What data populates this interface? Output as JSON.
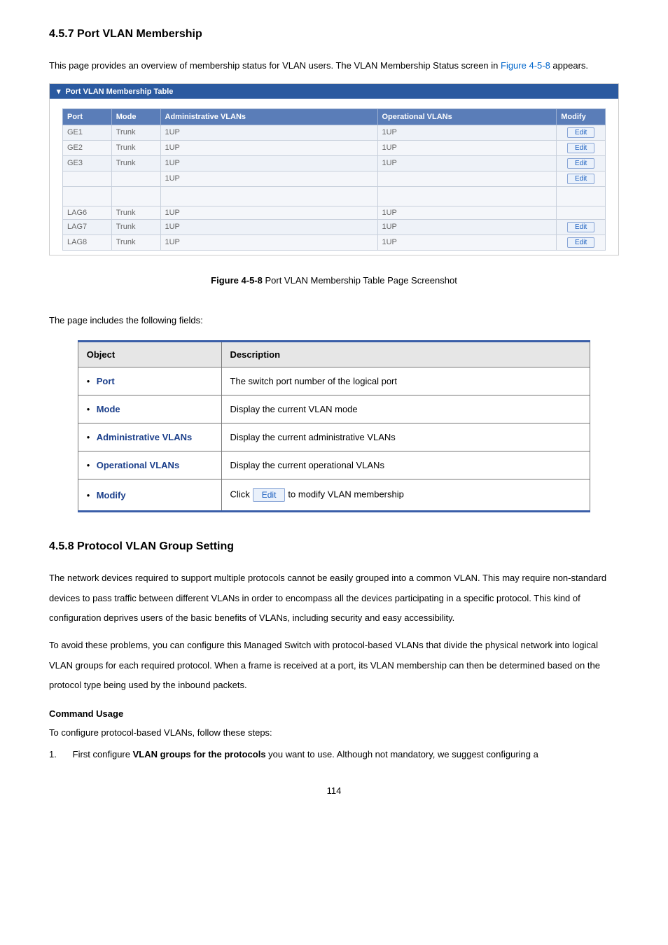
{
  "colors": {
    "panel_header_bg": "#2b5aa0",
    "table_header_bg": "#5a7db8",
    "edit_btn_text": "#1b5fbf",
    "accent_rule": "#3a5ea8",
    "object_label": "#1b3f8b",
    "figlink": "#0066cc"
  },
  "section1": {
    "heading": "4.5.7 Port VLAN Membership",
    "intro_before_link": "This page provides an overview of membership status for VLAN users. The VLAN Membership Status screen in ",
    "intro_link_text": "Figure 4-5-8",
    "intro_after_link": " appears."
  },
  "screenshot": {
    "panel_title": "Port VLAN Membership Table",
    "columns": {
      "port": "Port",
      "mode": "Mode",
      "admin": "Administrative VLANs",
      "oper": "Operational VLANs",
      "modify": "Modify"
    },
    "edit_label": "Edit",
    "rows_top": [
      {
        "port": "GE1",
        "mode": "Trunk",
        "admin": "1UP",
        "oper": "1UP"
      },
      {
        "port": "GE2",
        "mode": "Trunk",
        "admin": "1UP",
        "oper": "1UP"
      },
      {
        "port": "GE3",
        "mode": "Trunk",
        "admin": "1UP",
        "oper": "1UP"
      },
      {
        "port": "",
        "mode": "",
        "admin": "1UP",
        "oper": ""
      }
    ],
    "rows_bottom": [
      {
        "port": "LAG6",
        "mode": "Trunk",
        "admin": "1UP",
        "oper": "1UP",
        "show_edit": false
      },
      {
        "port": "LAG7",
        "mode": "Trunk",
        "admin": "1UP",
        "oper": "1UP",
        "show_edit": true
      },
      {
        "port": "LAG8",
        "mode": "Trunk",
        "admin": "1UP",
        "oper": "1UP",
        "show_edit": true
      }
    ]
  },
  "figure_caption": {
    "bold": "Figure 4-5-8",
    "rest": " Port VLAN Membership Table Page Screenshot"
  },
  "fields_intro": "The page includes the following fields:",
  "obj_table": {
    "head_object": "Object",
    "head_desc": "Description",
    "rows": [
      {
        "label": "Port",
        "desc": "The switch port number of the logical port"
      },
      {
        "label": "Mode",
        "desc": "Display the current VLAN mode"
      },
      {
        "label": "Administrative VLANs",
        "desc": "Display the current administrative VLANs"
      },
      {
        "label": "Operational VLANs",
        "desc": "Display the current operational VLANs"
      }
    ],
    "modify_label": "Modify",
    "modify_desc_before": "Click",
    "modify_btn": "Edit",
    "modify_desc_after": "to modify VLAN membership"
  },
  "section2": {
    "heading": "4.5.8 Protocol VLAN Group Setting",
    "para1": "The network devices required to support multiple protocols cannot be easily grouped into a common VLAN. This may require non-standard devices to pass traffic between different VLANs in order to encompass all the devices participating in a specific protocol. This kind of configuration deprives users of the basic benefits of VLANs, including security and easy accessibility.",
    "para2": "To avoid these problems, you can configure this Managed Switch with protocol-based VLANs that divide the physical network into logical VLAN groups for each required protocol. When a frame is received at a port, its VLAN membership can then be determined based on the protocol type being used by the inbound packets.",
    "cmd_usage_head": "Command Usage",
    "cmd_usage_intro": "To configure protocol-based VLANs, follow these steps:",
    "step1_num": "1.",
    "step1_before_bold": "First configure ",
    "step1_bold": "VLAN groups for the protocols",
    "step1_after_bold": " you want to use. Although not mandatory, we suggest configuring a"
  },
  "page_number": "114"
}
